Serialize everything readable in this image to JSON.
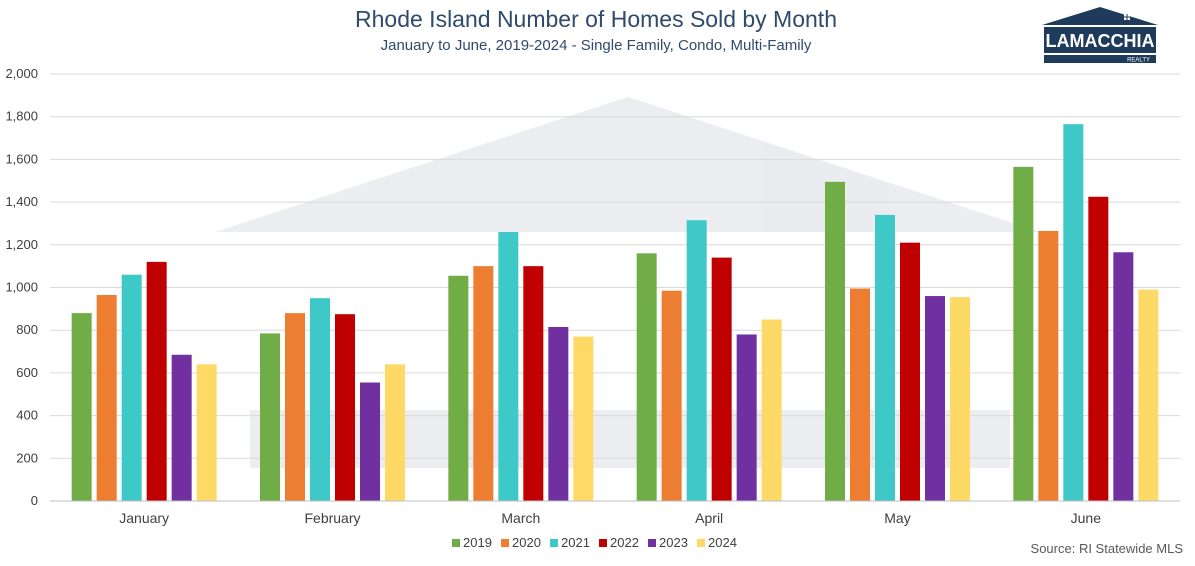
{
  "title": "Rhode Island Number of Homes Sold by Month",
  "subtitle": "January to June, 2019-2024 - Single Family, Condo, Multi-Family",
  "source": "Source: RI Statewide MLS",
  "logo": {
    "name": "LAMACCHIA",
    "tagline": "REALTY"
  },
  "watermark": {
    "name": "LAMACCHIA",
    "tagline": "REALTY"
  },
  "colors": {
    "grid": "#d9d9d9",
    "axis": "#bfbfbf",
    "title": "#2f4a6d",
    "logo": "#1f3b5c"
  },
  "chart_data": {
    "type": "bar",
    "title": "Rhode Island Number of Homes Sold by Month",
    "subtitle": "January to June, 2019-2024 - Single Family, Condo, Multi-Family",
    "categories": [
      "January",
      "February",
      "March",
      "April",
      "May",
      "June"
    ],
    "ylim": [
      0,
      2000
    ],
    "yticks": [
      0,
      200,
      400,
      600,
      800,
      1000,
      1200,
      1400,
      1600,
      1800,
      2000
    ],
    "ytick_labels": [
      "0",
      "200",
      "400",
      "600",
      "800",
      "1,000",
      "1,200",
      "1,400",
      "1,600",
      "1,800",
      "2,000"
    ],
    "grid": true,
    "legend_position": "bottom",
    "series": [
      {
        "name": "2019",
        "color": "#70ad47",
        "values": [
          880,
          785,
          1055,
          1160,
          1495,
          1565
        ]
      },
      {
        "name": "2020",
        "color": "#ed7d31",
        "values": [
          965,
          880,
          1100,
          985,
          995,
          1265
        ]
      },
      {
        "name": "2021",
        "color": "#3ec8c8",
        "values": [
          1060,
          950,
          1260,
          1315,
          1340,
          1765
        ]
      },
      {
        "name": "2022",
        "color": "#c00000",
        "values": [
          1120,
          875,
          1100,
          1140,
          1210,
          1425
        ]
      },
      {
        "name": "2023",
        "color": "#7030a0",
        "values": [
          685,
          555,
          815,
          780,
          960,
          1165
        ]
      },
      {
        "name": "2024",
        "color": "#ffd966",
        "values": [
          640,
          640,
          770,
          850,
          955,
          990
        ]
      }
    ]
  }
}
